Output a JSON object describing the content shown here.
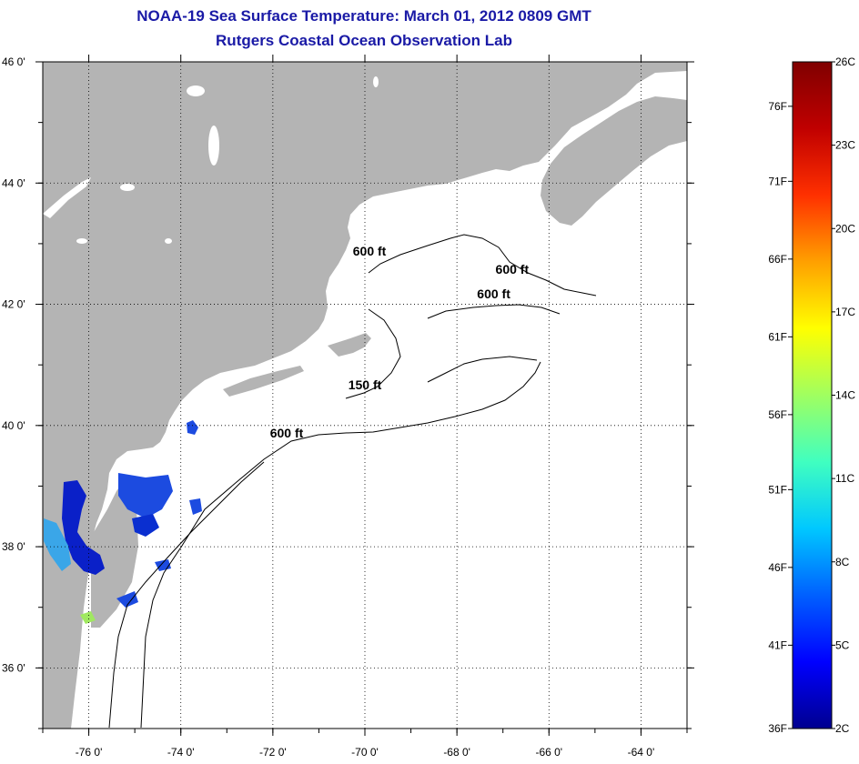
{
  "header": {
    "title": "NOAA-19 Sea Surface Temperature:  March 01, 2012 0809 GMT",
    "subtitle": "Rutgers Coastal Ocean Observation Lab"
  },
  "map": {
    "lon_range": [
      -77,
      -63
    ],
    "lat_range": [
      35,
      46
    ],
    "lon_ticks": [
      {
        "value": -76,
        "label": "-76 0'"
      },
      {
        "value": -74,
        "label": "-74 0'"
      },
      {
        "value": -72,
        "label": "-72 0'"
      },
      {
        "value": -70,
        "label": "-70 0'"
      },
      {
        "value": -68,
        "label": "-68 0'"
      },
      {
        "value": -66,
        "label": "-66 0'"
      },
      {
        "value": -64,
        "label": "-64 0'"
      }
    ],
    "lat_ticks": [
      {
        "value": 46,
        "label": "46 0'"
      },
      {
        "value": 44,
        "label": "44 0'"
      },
      {
        "value": 42,
        "label": "42 0'"
      },
      {
        "value": 40,
        "label": "40 0'"
      },
      {
        "value": 38,
        "label": "38 0'"
      },
      {
        "value": 36,
        "label": "36 0'"
      }
    ],
    "grid": "dotted",
    "land_color": "#b4b4b4",
    "water_color": "#ffffff",
    "contour_labels": [
      {
        "text": "600 ft",
        "lon": -69.9,
        "lat": 42.8
      },
      {
        "text": "600 ft",
        "lon": -66.8,
        "lat": 42.5
      },
      {
        "text": "600 ft",
        "lon": -67.2,
        "lat": 42.1
      },
      {
        "text": "150 ft",
        "lon": -70.0,
        "lat": 40.6
      },
      {
        "text": "600 ft",
        "lon": -71.7,
        "lat": 39.8
      }
    ]
  },
  "colorbar": {
    "colors": [
      "#00008f",
      "#0000ff",
      "#0060ff",
      "#00c8ff",
      "#40ffc0",
      "#a0ff60",
      "#ffff00",
      "#ffa000",
      "#ff3000",
      "#c00000",
      "#800000"
    ],
    "left_labels": [
      {
        "label": "76F",
        "value": 24.4
      },
      {
        "label": "71F",
        "value": 21.7
      },
      {
        "label": "66F",
        "value": 18.9
      },
      {
        "label": "61F",
        "value": 16.1
      },
      {
        "label": "56F",
        "value": 13.3
      },
      {
        "label": "51F",
        "value": 10.6
      },
      {
        "label": "46F",
        "value": 7.8
      },
      {
        "label": "41F",
        "value": 5.0
      },
      {
        "label": "36F",
        "value": 2.0
      }
    ],
    "right_labels": [
      {
        "label": "26C",
        "value": 26
      },
      {
        "label": "23C",
        "value": 23
      },
      {
        "label": "20C",
        "value": 20
      },
      {
        "label": "17C",
        "value": 17
      },
      {
        "label": "14C",
        "value": 14
      },
      {
        "label": "11C",
        "value": 11
      },
      {
        "label": "8C",
        "value": 8
      },
      {
        "label": "5C",
        "value": 5
      },
      {
        "label": "2C",
        "value": 2
      }
    ],
    "range": [
      2,
      26
    ]
  }
}
